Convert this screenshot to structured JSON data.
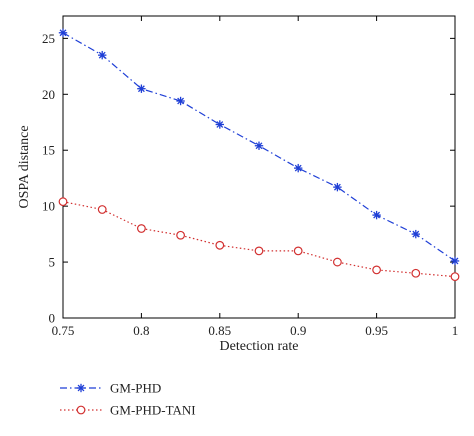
{
  "chart_data": {
    "type": "line",
    "xlabel": "Detection rate",
    "ylabel": "OSPA distance",
    "xlim": [
      0.75,
      1
    ],
    "ylim": [
      0,
      27
    ],
    "x_ticks": [
      "0.75",
      "0.8",
      "0.85",
      "0.9",
      "0.95",
      "1"
    ],
    "y_ticks": [
      "0",
      "5",
      "10",
      "15",
      "20",
      "25"
    ],
    "x": [
      0.75,
      0.775,
      0.8,
      0.825,
      0.85,
      0.875,
      0.9,
      0.925,
      0.95,
      0.975,
      1.0
    ],
    "series": [
      {
        "name": "GM-PHD",
        "color": "#1f3fd6",
        "marker": "asterisk",
        "line_style": "dash-dot",
        "values": [
          25.5,
          23.5,
          20.5,
          19.4,
          17.3,
          15.4,
          13.4,
          11.7,
          9.2,
          7.5,
          5.1
        ]
      },
      {
        "name": "GM-PHD-TANI",
        "color": "#d23030",
        "marker": "circle",
        "line_style": "dotted",
        "values": [
          10.4,
          9.7,
          8.0,
          7.4,
          6.5,
          6.0,
          6.0,
          5.0,
          4.3,
          4.0,
          3.7
        ]
      }
    ],
    "grid": false,
    "legend_position": "bottom-left, below plot"
  }
}
